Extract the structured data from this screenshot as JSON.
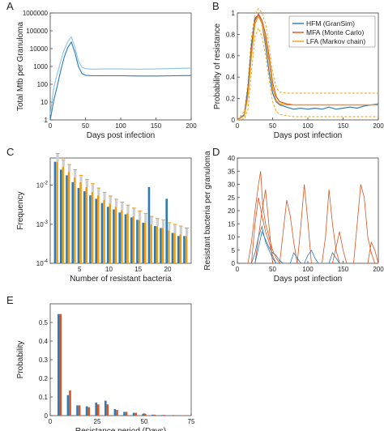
{
  "colors": {
    "blue": "#2c7bb6",
    "blue_light": "#8ec3e6",
    "red": "#d9541e",
    "orange": "#f39c12",
    "orange_light": "#f6b94d",
    "grey": "#999999"
  },
  "chart_data": [
    {
      "id": "A",
      "type": "line",
      "panel_label": "A",
      "xlabel": "Days post infection",
      "ylabel": "Total Mtb per Granuloma",
      "xlim": [
        0,
        200
      ],
      "ylim": [
        1,
        1000000
      ],
      "yscale": "log",
      "xticks": [
        "0",
        "50",
        "100",
        "150",
        "200"
      ],
      "yticks": [
        "1",
        "10",
        "100",
        "1000",
        "10000",
        "100000",
        "1000000"
      ],
      "series": [
        {
          "color": "#2c7bb6",
          "x": [
            0,
            5,
            10,
            15,
            20,
            25,
            30,
            35,
            40,
            45,
            50,
            60,
            75,
            100,
            125,
            150,
            175,
            200
          ],
          "y": [
            1,
            12,
            80,
            600,
            3500,
            12000,
            23000,
            6000,
            1000,
            400,
            320,
            300,
            300,
            300,
            290,
            290,
            300,
            310
          ]
        },
        {
          "color": "#8ec3e6",
          "x": [
            0,
            5,
            10,
            15,
            20,
            25,
            30,
            35,
            40,
            45,
            50,
            60,
            75,
            100,
            125,
            150,
            175,
            200
          ],
          "y": [
            2,
            60,
            400,
            2000,
            9000,
            25000,
            45000,
            12000,
            2000,
            900,
            750,
            700,
            720,
            720,
            700,
            720,
            760,
            800
          ]
        }
      ]
    },
    {
      "id": "B",
      "type": "line",
      "panel_label": "B",
      "xlabel": "Days post infection",
      "ylabel": "Probability of resistance",
      "xlim": [
        0,
        200
      ],
      "ylim": [
        0,
        1
      ],
      "xticks": [
        "0",
        "50",
        "100",
        "150",
        "200"
      ],
      "yticks": [
        "0",
        "0.2",
        "0.4",
        "0.6",
        "0.8",
        "1"
      ],
      "legend": [
        "HFM (GranSim)",
        "MFA (Monte Carlo)",
        "LFA (Markov chain)"
      ],
      "series": [
        {
          "name": "HFM (GranSim)",
          "color": "#2c7bb6",
          "x": [
            0,
            10,
            15,
            20,
            25,
            30,
            35,
            40,
            45,
            50,
            55,
            60,
            65,
            70,
            80,
            90,
            100,
            110,
            120,
            130,
            140,
            150,
            160,
            170,
            180,
            190,
            200
          ],
          "y": [
            0,
            0.05,
            0.3,
            0.7,
            0.95,
            0.98,
            0.9,
            0.7,
            0.45,
            0.25,
            0.17,
            0.14,
            0.13,
            0.12,
            0.1,
            0.11,
            0.1,
            0.11,
            0.1,
            0.12,
            0.1,
            0.11,
            0.12,
            0.11,
            0.13,
            0.14,
            0.15
          ]
        },
        {
          "name": "MFA (Monte Carlo)",
          "color": "#d9541e",
          "x": [
            0,
            10,
            15,
            20,
            25,
            30,
            35,
            40,
            45,
            50,
            55,
            60,
            70,
            80,
            100,
            120,
            140,
            160,
            180,
            200
          ],
          "y": [
            0,
            0.04,
            0.25,
            0.65,
            0.93,
            0.99,
            0.93,
            0.8,
            0.6,
            0.35,
            0.22,
            0.17,
            0.15,
            0.14,
            0.14,
            0.14,
            0.14,
            0.14,
            0.14,
            0.14
          ]
        },
        {
          "name": "LFA (Markov chain)",
          "color": "#f39c12",
          "x": [
            0,
            10,
            15,
            20,
            25,
            30,
            35,
            40,
            45,
            50,
            55,
            60,
            70,
            80,
            100,
            120,
            140,
            160,
            180,
            200
          ],
          "y": [
            0,
            0.04,
            0.22,
            0.6,
            0.9,
            0.97,
            0.9,
            0.75,
            0.55,
            0.3,
            0.18,
            0.15,
            0.14,
            0.14,
            0.14,
            0.14,
            0.14,
            0.14,
            0.14,
            0.14
          ],
          "upper": [
            0,
            0.08,
            0.35,
            0.78,
            0.99,
            1.04,
            1.0,
            0.9,
            0.7,
            0.45,
            0.3,
            0.26,
            0.25,
            0.25,
            0.25,
            0.25,
            0.25,
            0.25,
            0.25,
            0.25
          ],
          "lower": [
            0,
            0.01,
            0.1,
            0.45,
            0.78,
            0.86,
            0.78,
            0.6,
            0.38,
            0.17,
            0.08,
            0.05,
            0.04,
            0.03,
            0.03,
            0.03,
            0.03,
            0.03,
            0.03,
            0.03
          ]
        }
      ]
    },
    {
      "id": "C",
      "type": "bar",
      "panel_label": "C",
      "xlabel": "Number of resistant bacteria",
      "ylabel": "Frequency",
      "xlim": [
        0,
        24
      ],
      "ylim": [
        0.0001,
        0.05
      ],
      "yscale": "log",
      "xticks": [
        "5",
        "10",
        "15",
        "20"
      ],
      "yticks": [
        "10^-2",
        "10^-3",
        "10^-4"
      ],
      "categories": [
        1,
        2,
        3,
        4,
        5,
        6,
        7,
        8,
        9,
        10,
        11,
        12,
        13,
        14,
        15,
        16,
        17,
        18,
        19,
        20,
        21,
        22,
        23
      ],
      "series": [
        {
          "color": "#2c7bb6",
          "values": [
            0.04,
            0.025,
            0.018,
            0.012,
            0.0085,
            0.007,
            0.0055,
            0.0045,
            0.0035,
            0.0028,
            0.0024,
            0.002,
            0.0018,
            0.0015,
            0.0013,
            0.0011,
            0.009,
            0.0009,
            0.0008,
            0.0045,
            0.0006,
            0.0005,
            0.0005
          ]
        },
        {
          "color": "#f39c12",
          "values": [
            0.04,
            0.03,
            0.022,
            0.016,
            0.012,
            0.009,
            0.0068,
            0.0055,
            0.0042,
            0.0034,
            0.0028,
            0.0023,
            0.0019,
            0.0016,
            0.0013,
            0.0011,
            0.001,
            0.0009,
            0.0008,
            0.0007,
            0.0006,
            0.00055,
            0.0005
          ],
          "err": [
            0.065,
            0.045,
            0.034,
            0.025,
            0.018,
            0.014,
            0.011,
            0.0085,
            0.0066,
            0.0053,
            0.0044,
            0.0037,
            0.0031,
            0.0026,
            0.0022,
            0.0019,
            0.0016,
            0.0014,
            0.0013,
            0.0011,
            0.001,
            0.0009,
            0.0008
          ]
        }
      ]
    },
    {
      "id": "D",
      "type": "line",
      "panel_label": "D",
      "xlabel": "Days post infection",
      "ylabel": "Resistant bacteria per granuloma",
      "xlim": [
        0,
        200
      ],
      "ylim": [
        0,
        40
      ],
      "xticks": [
        "0",
        "50",
        "100",
        "150",
        "200"
      ],
      "yticks": [
        "0",
        "5",
        "10",
        "15",
        "20",
        "25",
        "30",
        "35",
        "40"
      ],
      "series": [
        {
          "color": "#d9541e",
          "x": [
            15,
            20,
            25,
            30,
            33,
            36,
            40,
            45,
            50,
            55,
            60,
            65
          ],
          "y": [
            0,
            8,
            20,
            30,
            35,
            22,
            15,
            10,
            5,
            2,
            0,
            0
          ]
        },
        {
          "color": "#d9541e",
          "x": [
            20,
            25,
            30,
            35,
            40,
            45,
            50,
            55
          ],
          "y": [
            0,
            15,
            25,
            18,
            12,
            8,
            3,
            0
          ]
        },
        {
          "color": "#d9541e",
          "x": [
            25,
            30,
            35,
            40,
            45,
            50
          ],
          "y": [
            0,
            10,
            20,
            28,
            14,
            0
          ]
        },
        {
          "color": "#d9541e",
          "x": [
            60,
            65,
            70,
            75,
            80,
            85
          ],
          "y": [
            0,
            12,
            24,
            18,
            8,
            0
          ]
        },
        {
          "color": "#d9541e",
          "x": [
            85,
            90,
            95,
            100,
            105
          ],
          "y": [
            0,
            14,
            30,
            16,
            0
          ]
        },
        {
          "color": "#d9541e",
          "x": [
            120,
            125,
            130,
            135,
            140,
            145
          ],
          "y": [
            0,
            10,
            28,
            15,
            5,
            0
          ]
        },
        {
          "color": "#d9541e",
          "x": [
            165,
            170,
            175,
            180,
            185,
            190,
            195
          ],
          "y": [
            0,
            15,
            30,
            25,
            10,
            4,
            0
          ]
        },
        {
          "color": "#d9541e",
          "x": [
            135,
            140,
            145,
            150,
            155
          ],
          "y": [
            0,
            6,
            12,
            5,
            0
          ]
        },
        {
          "color": "#d9541e",
          "x": [
            185,
            190,
            195,
            200
          ],
          "y": [
            0,
            8,
            5,
            0
          ]
        },
        {
          "color": "#2c7bb6",
          "x": [
            20,
            25,
            30,
            35,
            40,
            45,
            50,
            55
          ],
          "y": [
            0,
            4,
            10,
            14,
            8,
            5,
            2,
            0
          ]
        },
        {
          "color": "#2c7bb6",
          "x": [
            25,
            30,
            35,
            40,
            45,
            50,
            55,
            60,
            65
          ],
          "y": [
            0,
            6,
            12,
            9,
            6,
            4,
            3,
            1,
            0
          ]
        },
        {
          "color": "#2c7bb6",
          "x": [
            75,
            80,
            85,
            90
          ],
          "y": [
            0,
            4,
            2,
            0
          ]
        },
        {
          "color": "#2c7bb6",
          "x": [
            95,
            100,
            105,
            110,
            115
          ],
          "y": [
            0,
            3,
            5,
            2,
            0
          ]
        },
        {
          "color": "#2c7bb6",
          "x": [
            130,
            135,
            140,
            145
          ],
          "y": [
            0,
            4,
            2,
            0
          ]
        }
      ]
    },
    {
      "id": "E",
      "type": "bar",
      "panel_label": "E",
      "xlabel": "Resistance period (Days)",
      "ylabel": "Probability",
      "xlim": [
        0,
        75
      ],
      "ylim": [
        0,
        0.6
      ],
      "xticks": [
        "0",
        "25",
        "50",
        "75"
      ],
      "yticks": [
        "0",
        "0.1",
        "0.2",
        "0.3",
        "0.4",
        "0.5"
      ],
      "categories": [
        5,
        10,
        15,
        20,
        25,
        30,
        35,
        40,
        45,
        50,
        55,
        60,
        65,
        70
      ],
      "series": [
        {
          "color": "#2c7bb6",
          "values": [
            0.545,
            0.11,
            0.055,
            0.05,
            0.07,
            0.08,
            0.035,
            0.02,
            0.015,
            0.01,
            0.005,
            0.003,
            0.002,
            0.0015
          ]
        },
        {
          "color": "#d9541e",
          "values": [
            0.545,
            0.135,
            0.055,
            0.045,
            0.06,
            0.06,
            0.03,
            0.02,
            0.015,
            0.01,
            0.005,
            0.004,
            0.003,
            0.002
          ]
        }
      ]
    }
  ]
}
